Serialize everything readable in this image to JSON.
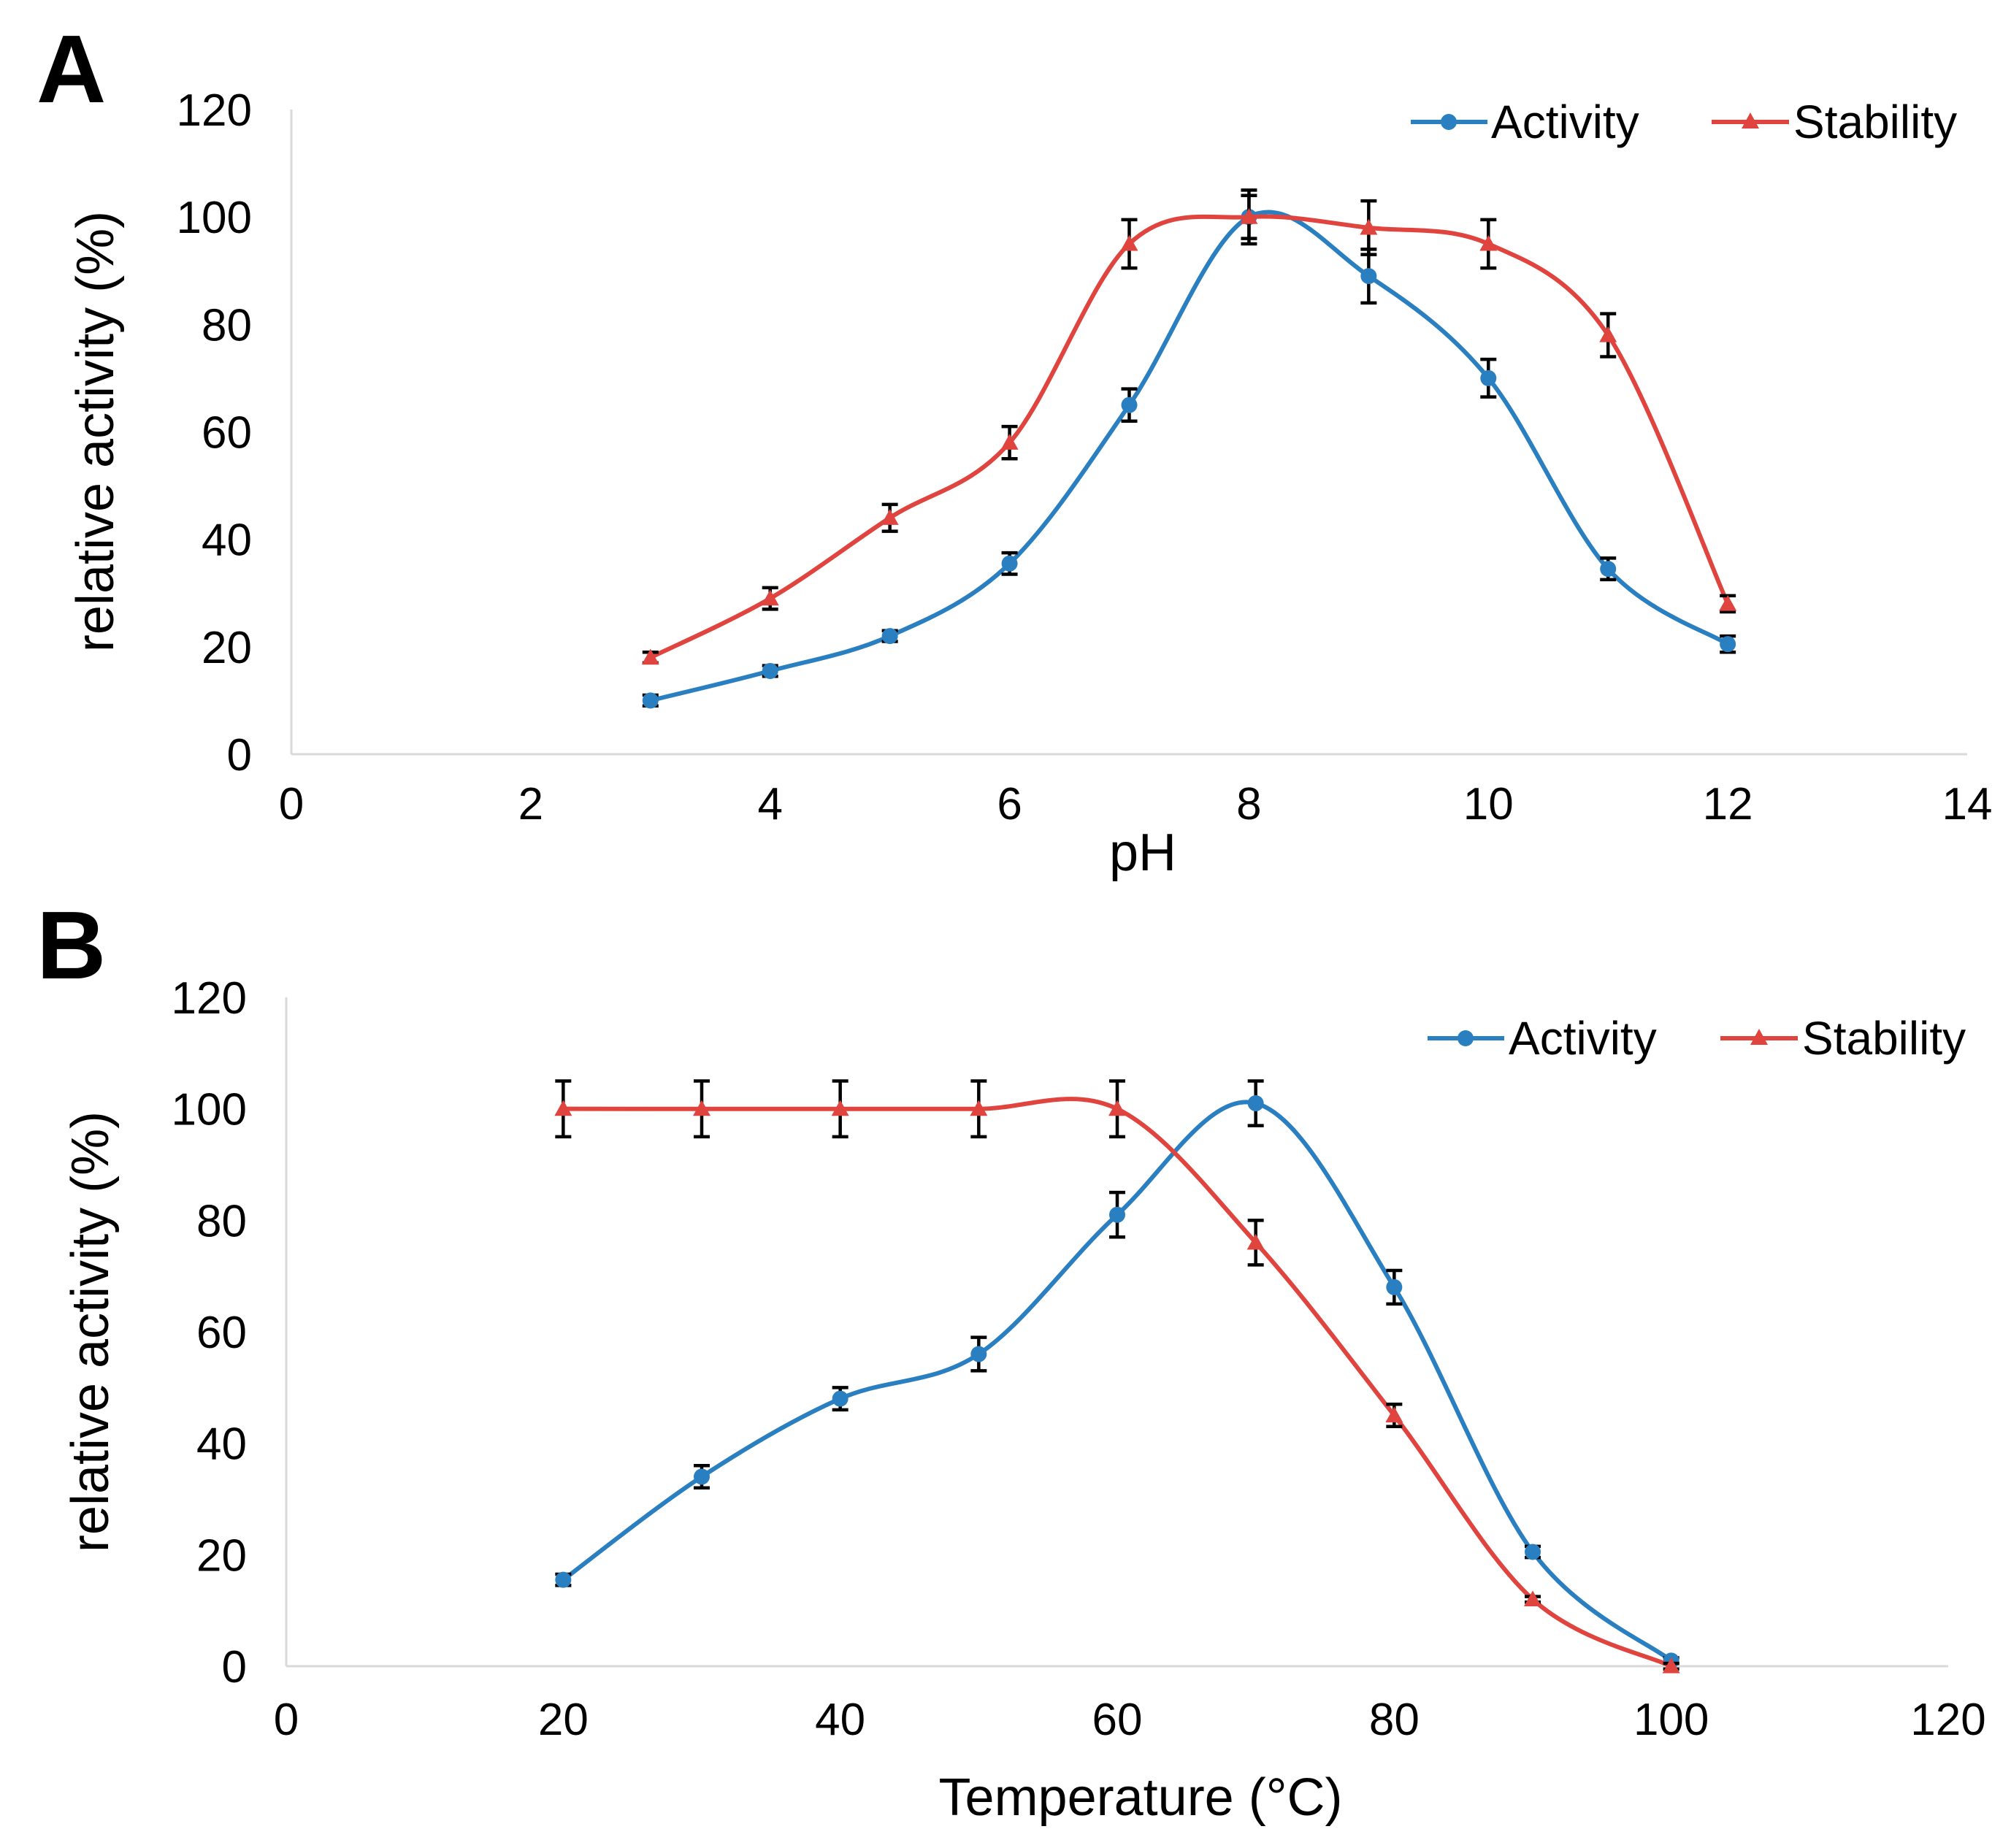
{
  "chart_data": [
    {
      "panel": "A",
      "type": "line",
      "xlabel": "pH",
      "ylabel": "relative activity (%)",
      "xlim": [
        0,
        14
      ],
      "ylim": [
        0,
        120
      ],
      "xticks": [
        "0",
        "2",
        "4",
        "6",
        "8",
        "10",
        "12",
        "14"
      ],
      "yticks": [
        "0",
        "20",
        "40",
        "60",
        "80",
        "100",
        "120"
      ],
      "legend_position": "top-right",
      "series": [
        {
          "name": "Activity",
          "color": "#2a7fc1",
          "marker": "circle",
          "x": [
            3,
            4,
            5,
            6,
            7,
            8,
            9,
            10,
            11,
            12
          ],
          "y": [
            10,
            15.5,
            22,
            35.5,
            65,
            100,
            89,
            70,
            34.5,
            20.5
          ],
          "err": [
            1,
            1,
            1,
            2,
            3,
            4,
            5,
            3.5,
            2,
            1.5
          ]
        },
        {
          "name": "Stability",
          "color": "#e0443f",
          "marker": "triangle",
          "x": [
            3,
            4,
            5,
            6,
            7,
            8,
            9,
            10,
            11,
            12
          ],
          "y": [
            18,
            29,
            44,
            58,
            95,
            100,
            98,
            95,
            78,
            28
          ],
          "err": [
            1,
            2,
            2.5,
            3,
            4.5,
            5,
            5,
            4.5,
            4,
            1.5
          ]
        }
      ]
    },
    {
      "panel": "B",
      "type": "line",
      "xlabel": "Temperature (°C)",
      "ylabel": "relative activity (%)",
      "xlim": [
        0,
        120
      ],
      "ylim": [
        0,
        120
      ],
      "xticks": [
        "0",
        "20",
        "40",
        "60",
        "80",
        "100",
        "120"
      ],
      "yticks": [
        "0",
        "20",
        "40",
        "60",
        "80",
        "100",
        "120"
      ],
      "legend_position": "top-right",
      "series": [
        {
          "name": "Activity",
          "color": "#2a7fc1",
          "marker": "circle",
          "x": [
            20,
            30,
            40,
            50,
            60,
            70,
            80,
            90,
            100
          ],
          "y": [
            15.5,
            34,
            48,
            56,
            81,
            101,
            68,
            20.5,
            1
          ],
          "err": [
            1,
            2,
            2,
            3,
            4,
            4,
            3,
            1,
            0.5
          ]
        },
        {
          "name": "Stability",
          "color": "#e0443f",
          "marker": "triangle",
          "x": [
            20,
            30,
            40,
            50,
            60,
            70,
            80,
            90,
            100
          ],
          "y": [
            100,
            100,
            100,
            100,
            100,
            76,
            45,
            12,
            0
          ],
          "err": [
            5,
            5,
            5,
            5,
            5,
            4,
            2,
            0.5,
            0.5
          ]
        }
      ]
    }
  ]
}
